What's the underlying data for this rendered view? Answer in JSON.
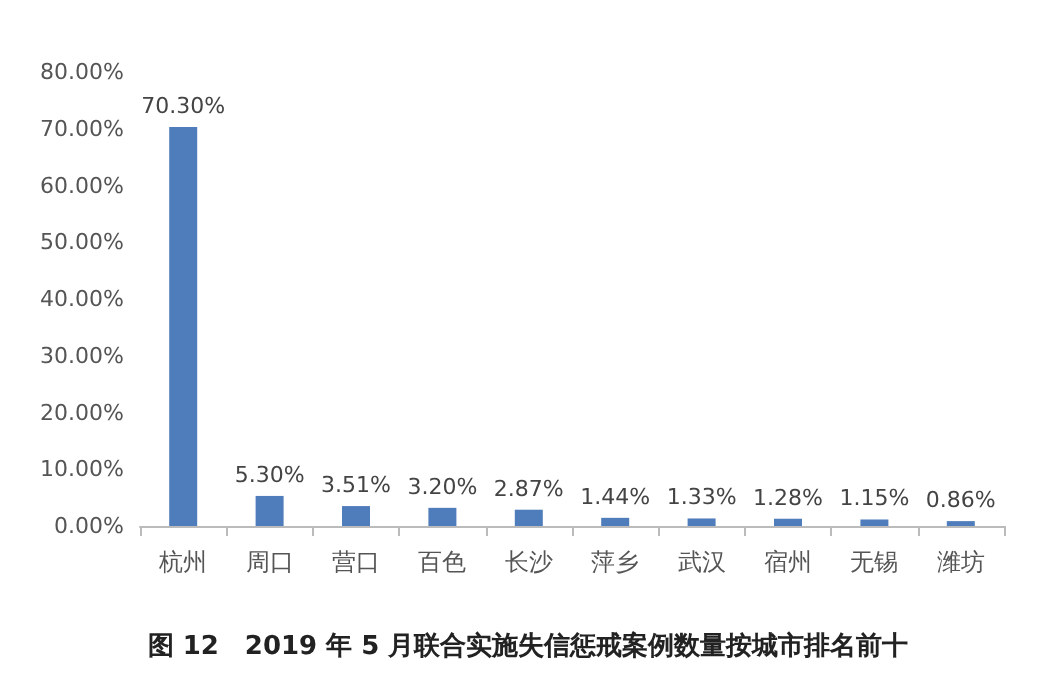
{
  "chart_data": {
    "type": "bar",
    "title": "图 12　2019 年 5 月联合实施失信惩戒案例数量按城市排名前十",
    "categories": [
      "杭州",
      "周口",
      "营口",
      "百色",
      "长沙",
      "萍乡",
      "武汉",
      "宿州",
      "无锡",
      "潍坊"
    ],
    "values": [
      70.3,
      5.3,
      3.51,
      3.2,
      2.87,
      1.44,
      1.33,
      1.28,
      1.15,
      0.86
    ],
    "value_labels": [
      "70.30%",
      "5.30%",
      "3.51%",
      "3.20%",
      "2.87%",
      "1.44%",
      "1.33%",
      "1.28%",
      "1.15%",
      "0.86%"
    ],
    "color": "#4f7cba",
    "ylim": [
      0,
      80
    ],
    "yticks": [
      {
        "value": 0,
        "label": "0.00%"
      },
      {
        "value": 10,
        "label": "10.00%"
      },
      {
        "value": 20,
        "label": "20.00%"
      },
      {
        "value": 30,
        "label": "30.00%"
      },
      {
        "value": 40,
        "label": "40.00%"
      },
      {
        "value": 50,
        "label": "50.00%"
      },
      {
        "value": 60,
        "label": "60.00%"
      },
      {
        "value": 70,
        "label": "70.00%"
      },
      {
        "value": 80,
        "label": "80.00%"
      }
    ],
    "grid": false
  }
}
